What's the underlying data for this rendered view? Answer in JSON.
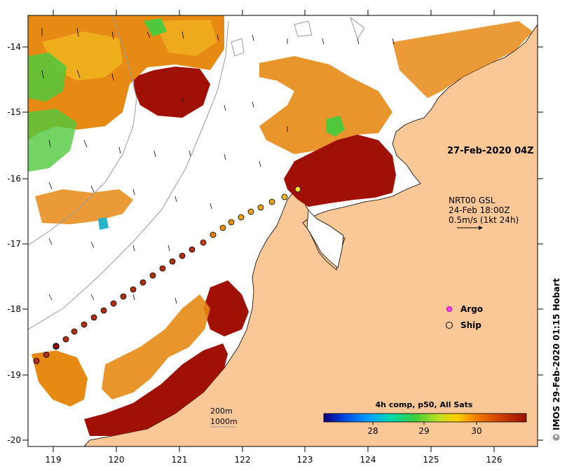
{
  "map": {
    "x_ticks": [
      "119",
      "120",
      "121",
      "122",
      "123",
      "124",
      "125",
      "126"
    ],
    "y_ticks": [
      "-14",
      "-15",
      "-16",
      "-17",
      "-18",
      "-19",
      "-20"
    ],
    "timestamp": "27-Feb-2020 04Z",
    "current_label": {
      "line1": "NRT00 GSL",
      "line2": "24-Feb 18:00Z",
      "line3": "0.5m/s (1kt 24h)"
    },
    "depth_legend": {
      "contour1": "200m",
      "contour2": "1000m"
    },
    "legend": {
      "argo": "Argo",
      "ship": "Ship"
    },
    "colorbar": {
      "title": "4h comp, p50, All Sats",
      "ticks": [
        "28",
        "29",
        "30"
      ],
      "colors": [
        "#0c007a",
        "#0046e0",
        "#00a0ff",
        "#00d8b0",
        "#3ccc3c",
        "#b8e024",
        "#ffd000",
        "#f07800",
        "#cc3c00",
        "#961000"
      ]
    },
    "credit": "IMOS 29-Feb-2020 01:15 Hobart",
    "copyright_symbol": "©",
    "colors": {
      "land": "#fac796",
      "sea_white": "#ffffff",
      "hot": "#a01004",
      "orange": "#e68a14",
      "yellow_orange": "#f0b21e",
      "green": "#50c83c",
      "cyan": "#28b4c8"
    }
  }
}
